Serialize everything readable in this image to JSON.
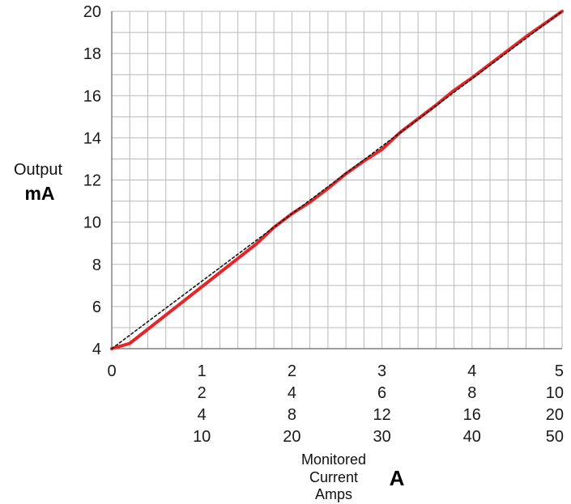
{
  "chart_data": {
    "type": "line",
    "ylabel": [
      "Output",
      "mA"
    ],
    "xlabel": [
      "Monitored",
      "Current",
      "Amps"
    ],
    "xunit": "A",
    "ylim": [
      4,
      20
    ],
    "yticks": [
      "4",
      "6",
      "8",
      "10",
      "12",
      "14",
      "16",
      "18",
      "20"
    ],
    "xlim": [
      0,
      5
    ],
    "xtick_rows": [
      [
        "0",
        "1",
        "2",
        "3",
        "4",
        "5"
      ],
      [
        "",
        "2",
        "4",
        "6",
        "8",
        "10"
      ],
      [
        "",
        "4",
        "8",
        "12",
        "16",
        "20"
      ],
      [
        "",
        "10",
        "20",
        "30",
        "40",
        "50"
      ]
    ],
    "grid": true,
    "grid_step_x": 0.2,
    "grid_step_y": 1,
    "series": [
      {
        "style": "solid",
        "color": "#e52528",
        "x": [
          0,
          0.2,
          1.6,
          1.8,
          2.0,
          2.2,
          2.4,
          2.6,
          2.8,
          3.0,
          3.2,
          3.4,
          3.6,
          3.8,
          4.0,
          4.2,
          4.4,
          4.6,
          4.8,
          5.0
        ],
        "y": [
          4,
          4.25,
          8.95,
          9.75,
          10.4,
          10.95,
          11.6,
          12.3,
          12.9,
          13.45,
          14.25,
          14.9,
          15.55,
          16.25,
          16.85,
          17.5,
          18.15,
          18.8,
          19.4,
          20
        ]
      },
      {
        "style": "dotted",
        "color": "#1a1a1a",
        "x": [
          0,
          5
        ],
        "y": [
          4,
          20
        ]
      }
    ]
  }
}
